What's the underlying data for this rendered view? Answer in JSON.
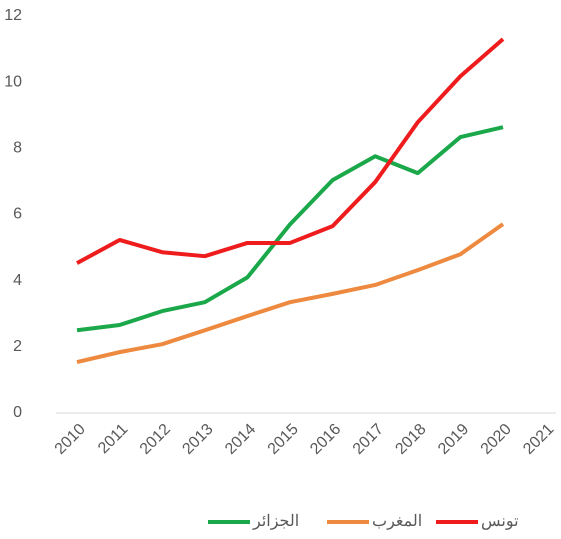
{
  "chart_data": {
    "type": "line",
    "categories": [
      "2010",
      "2011",
      "2012",
      "2013",
      "2014",
      "2015",
      "2016",
      "2017",
      "2018",
      "2019",
      "2020",
      "2021"
    ],
    "series": [
      {
        "name": "الجزائر",
        "color": "#1aa84a",
        "values": [
          2.5,
          2.66,
          3.08,
          3.35,
          4.1,
          5.7,
          7.04,
          7.76,
          7.25,
          8.34,
          8.64,
          null
        ]
      },
      {
        "name": "المغرب",
        "color": "#ed8a3f",
        "values": [
          1.54,
          1.84,
          2.08,
          2.5,
          2.93,
          3.35,
          3.6,
          3.87,
          4.32,
          4.8,
          5.71,
          null
        ]
      },
      {
        "name": "تونس",
        "color": "#ee1c1c",
        "values": [
          4.53,
          5.23,
          4.86,
          4.74,
          5.14,
          5.14,
          5.65,
          6.98,
          8.79,
          10.18,
          11.3,
          null
        ]
      }
    ],
    "ylim": [
      0,
      12
    ],
    "yticks": [
      0,
      2,
      4,
      6,
      8,
      10,
      12
    ],
    "grid": false,
    "legend": "bottom"
  }
}
